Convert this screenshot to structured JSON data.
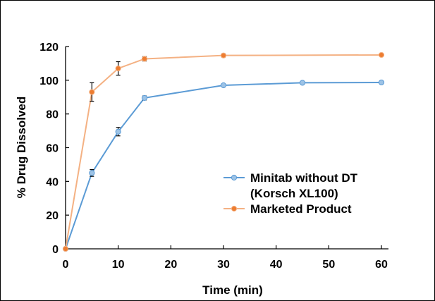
{
  "chart_data": {
    "type": "line",
    "xlabel": "Time (min)",
    "ylabel": "% Drug Dissolved",
    "xlim": [
      0,
      60
    ],
    "ylim": [
      0,
      120
    ],
    "xticks": [
      "0",
      "10",
      "20",
      "30",
      "40",
      "50",
      "60"
    ],
    "yticks": [
      "0",
      "20",
      "40",
      "60",
      "80",
      "100",
      "120"
    ],
    "grid": false,
    "legend_position": "right",
    "series": [
      {
        "name": "Minitab without DT (Korsch XL100)",
        "legend_lines": [
          "Minitab without DT",
          "(Korsch XL100)"
        ],
        "color": "#5B9BD5",
        "marker_fill": "#9DC3E6",
        "x": [
          0,
          5,
          10,
          15,
          30,
          45,
          60
        ],
        "y": [
          0,
          45,
          69.5,
          89.5,
          97,
          98.5,
          98.7
        ],
        "error": [
          0,
          2,
          2.5,
          1.2,
          0.8,
          0.5,
          0.5
        ]
      },
      {
        "name": "Marketed Product",
        "legend_lines": [
          "Marketed Product"
        ],
        "color": "#F4B183",
        "marker_fill": "#ED7D31",
        "x": [
          0,
          5,
          10,
          15,
          30,
          60
        ],
        "y": [
          0,
          93,
          107,
          112.7,
          114.7,
          115
        ],
        "error": [
          0,
          5.5,
          4,
          1.3,
          1,
          0.4
        ]
      }
    ]
  }
}
